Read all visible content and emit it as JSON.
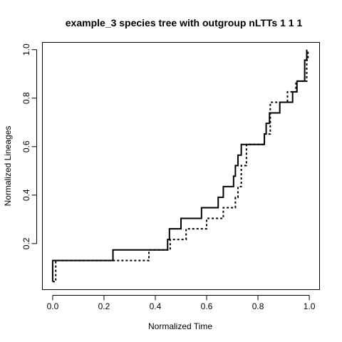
{
  "chart_data": {
    "type": "line",
    "title": "example_3 species tree with outgroup nLTTs 1 1 1",
    "xlabel": "Normalized Time",
    "ylabel": "Normalized Lineages",
    "xlim": [
      -0.04,
      1.04
    ],
    "ylim": [
      0.01,
      1.03
    ],
    "xticks": [
      0.0,
      0.2,
      0.4,
      0.6,
      0.8,
      1.0
    ],
    "xtick_labels": [
      "0.0",
      "0.2",
      "0.4",
      "0.6",
      "0.8",
      "1.0"
    ],
    "yticks": [
      0.2,
      0.4,
      0.6,
      0.8,
      1.0
    ],
    "ytick_labels": [
      "0.2",
      "0.4",
      "0.6",
      "0.8",
      "1.0"
    ],
    "grid": false,
    "legend": "none",
    "series": [
      {
        "line_style": "solid",
        "color": "#000000",
        "x": [
          0.0,
          0.0,
          0.235,
          0.448,
          0.455,
          0.5,
          0.58,
          0.645,
          0.665,
          0.705,
          0.712,
          0.722,
          0.735,
          0.825,
          0.832,
          0.845,
          0.885,
          0.935,
          0.952,
          0.982,
          0.99
        ],
        "y": [
          0.043,
          0.13,
          0.174,
          0.217,
          0.261,
          0.304,
          0.348,
          0.391,
          0.435,
          0.478,
          0.522,
          0.565,
          0.609,
          0.652,
          0.696,
          0.739,
          0.783,
          0.826,
          0.87,
          0.957,
          1.0
        ]
      },
      {
        "line_style": "dotted",
        "color": "#000000",
        "x": [
          0.0,
          0.012,
          0.375,
          0.458,
          0.52,
          0.6,
          0.665,
          0.712,
          0.722,
          0.735,
          0.755,
          0.825,
          0.848,
          0.915,
          0.948,
          0.99,
          0.995
        ],
        "y": [
          0.043,
          0.13,
          0.174,
          0.217,
          0.261,
          0.304,
          0.348,
          0.391,
          0.435,
          0.522,
          0.609,
          0.652,
          0.783,
          0.826,
          0.87,
          0.957,
          1.0
        ]
      }
    ]
  }
}
